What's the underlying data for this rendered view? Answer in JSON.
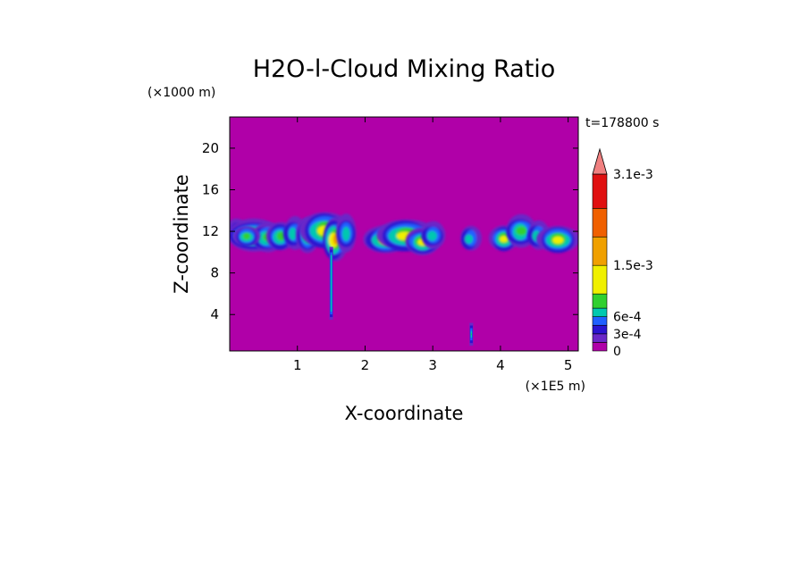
{
  "chart_data": {
    "type": "heatmap",
    "title": "H2O-l-Cloud Mixing Ratio",
    "xlabel": "X-coordinate",
    "ylabel": "Z-coordinate",
    "x_unit": "(×1E5 m)",
    "y_unit": "(×1000 m)",
    "time_label": "t=178800 s",
    "xlim": [
      0,
      5.15
    ],
    "ylim": [
      0.5,
      23
    ],
    "x_ticks": [
      1,
      2,
      3,
      4,
      5
    ],
    "y_ticks": [
      4,
      8,
      12,
      16,
      20
    ],
    "grid": false,
    "background_value": 0,
    "colorbar": {
      "levels": [
        0,
        0.00015,
        0.0003,
        0.00045,
        0.0006,
        0.00075,
        0.001,
        0.0015,
        0.002,
        0.0025,
        0.0031
      ],
      "colors": [
        "#b000a8",
        "#6a28c8",
        "#2a14d0",
        "#2060ff",
        "#00c8b0",
        "#30d030",
        "#f0f000",
        "#f0a000",
        "#f06000",
        "#e01010",
        "#f08080"
      ],
      "labels": [
        {
          "value": 0,
          "text": "0"
        },
        {
          "value": 0.0003,
          "text": "3e-4"
        },
        {
          "value": 0.0006,
          "text": "6e-4"
        },
        {
          "value": 0.0015,
          "text": "1.5e-3"
        },
        {
          "value": 0.0031,
          "text": "3.1e-3"
        }
      ],
      "extend": "max"
    },
    "features": [
      {
        "x": 0.1,
        "z": 12,
        "xw": 0.05,
        "zw": 0.8,
        "level": 2
      },
      {
        "x": 0.35,
        "z": 11.6,
        "xw": 0.24,
        "zw": 1.0,
        "level": 6
      },
      {
        "x": 0.55,
        "z": 11.4,
        "xw": 0.12,
        "zw": 0.9,
        "level": 5
      },
      {
        "x": 0.25,
        "z": 11.5,
        "xw": 0.08,
        "zw": 0.6,
        "level": 5
      },
      {
        "x": 0.75,
        "z": 11.5,
        "xw": 0.1,
        "zw": 0.9,
        "level": 5
      },
      {
        "x": 0.95,
        "z": 11.8,
        "xw": 0.07,
        "zw": 1.0,
        "level": 4
      },
      {
        "x": 1.15,
        "z": 11.6,
        "xw": 0.07,
        "zw": 1.2,
        "level": 5
      },
      {
        "x": 1.4,
        "z": 12.1,
        "xw": 0.2,
        "zw": 1.3,
        "level": 6
      },
      {
        "x": 1.55,
        "z": 11.2,
        "xw": 0.08,
        "zw": 1.5,
        "level": 7
      },
      {
        "x": 1.72,
        "z": 11.8,
        "xw": 0.06,
        "zw": 1.2,
        "level": 4
      },
      {
        "x": 2.3,
        "z": 11.2,
        "xw": 0.18,
        "zw": 0.9,
        "level": 6
      },
      {
        "x": 2.6,
        "z": 11.6,
        "xw": 0.25,
        "zw": 1.1,
        "level": 6
      },
      {
        "x": 2.85,
        "z": 11.0,
        "xw": 0.14,
        "zw": 0.8,
        "level": 6
      },
      {
        "x": 3.0,
        "z": 11.6,
        "xw": 0.08,
        "zw": 0.8,
        "level": 4
      },
      {
        "x": 3.55,
        "z": 11.3,
        "xw": 0.05,
        "zw": 0.8,
        "level": 4
      },
      {
        "x": 4.05,
        "z": 11.3,
        "xw": 0.1,
        "zw": 0.8,
        "level": 6
      },
      {
        "x": 4.3,
        "z": 12.0,
        "xw": 0.12,
        "zw": 1.0,
        "level": 5
      },
      {
        "x": 4.55,
        "z": 11.6,
        "xw": 0.06,
        "zw": 0.9,
        "level": 4
      },
      {
        "x": 4.85,
        "z": 11.2,
        "xw": 0.16,
        "zw": 0.9,
        "level": 6
      }
    ],
    "columns": [
      {
        "x": 1.5,
        "z_top": 10.5,
        "z_bottom": 3.5,
        "level": 4
      },
      {
        "x": 3.57,
        "z_top": 3.2,
        "z_bottom": 1.0,
        "level": 5
      }
    ]
  }
}
